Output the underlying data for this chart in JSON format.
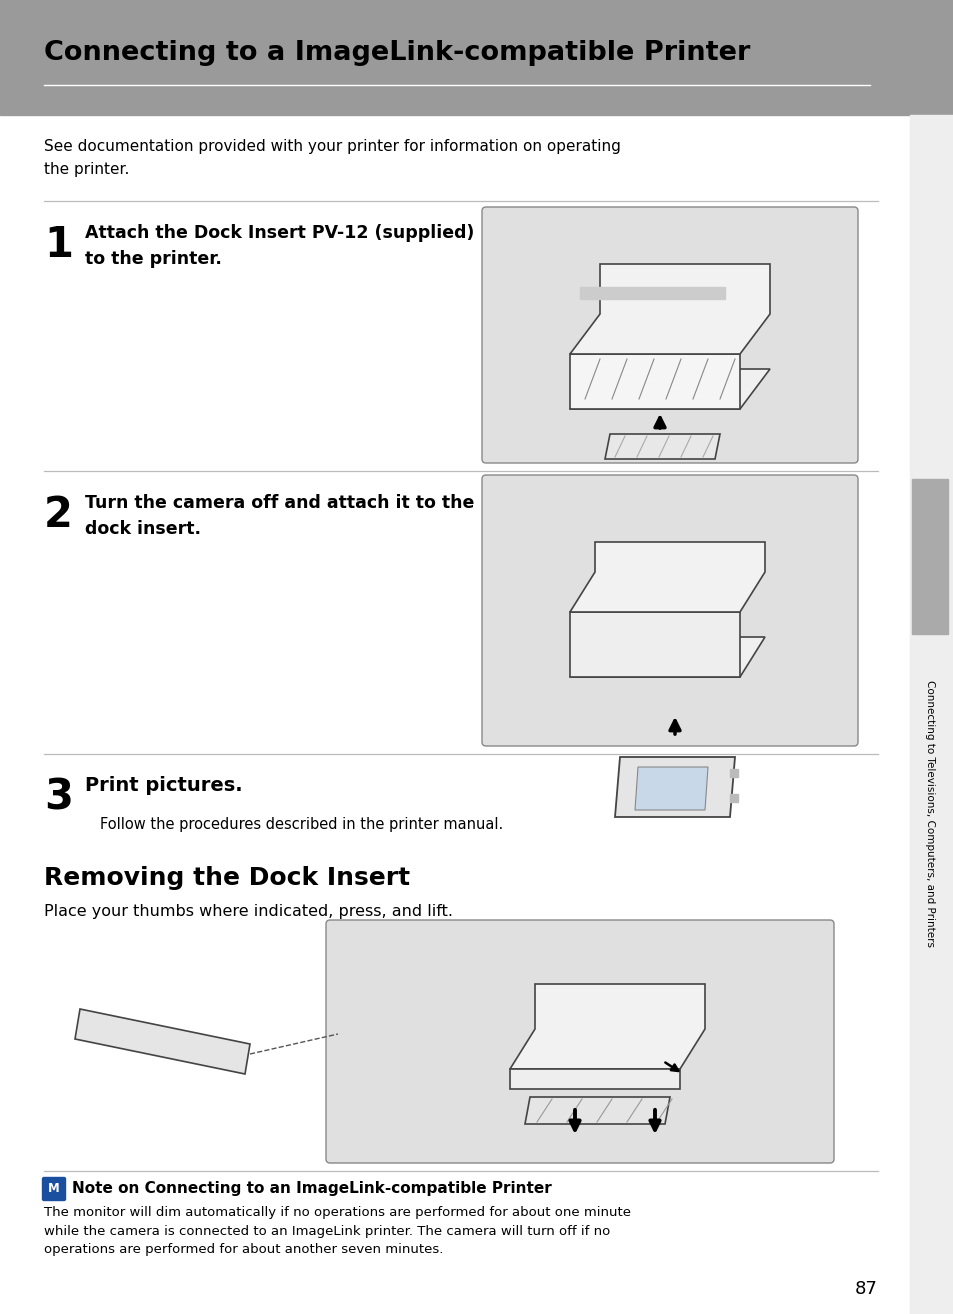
{
  "bg_color": "#ffffff",
  "header_bg": "#9a9a9a",
  "title": "Connecting to a ImageLink-compatible Printer",
  "intro_text": "See documentation provided with your printer for information on operating\nthe printer.",
  "step1_num": "1",
  "step1_text": "Attach the Dock Insert PV-12 (supplied)\nto the printer.",
  "step2_num": "2",
  "step2_text": "Turn the camera off and attach it to the\ndock insert.",
  "step3_num": "3",
  "step3_text": "Print pictures.",
  "step3_sub": "Follow the procedures described in the printer manual.",
  "section2_title": "Removing the Dock Insert",
  "section2_text": "Place your thumbs where indicated, press, and lift.",
  "note_title": "Note on Connecting to an ImageLink-compatible Printer",
  "note_text": "The monitor will dim automatically if no operations are performed for about one minute\nwhile the camera is connected to an ImageLink printer. The camera will turn off if no\noperations are performed for about another seven minutes.",
  "page_num": "87",
  "sidebar_text": "Connecting to Televisions, Computers, and Printers",
  "divider_color": "#bbbbbb",
  "img_box_color": "#e0e0e0",
  "note_icon_bg": "#1a4fa0",
  "sidebar_tab_color": "#aaaaaa",
  "white": "#ffffff",
  "black": "#000000"
}
